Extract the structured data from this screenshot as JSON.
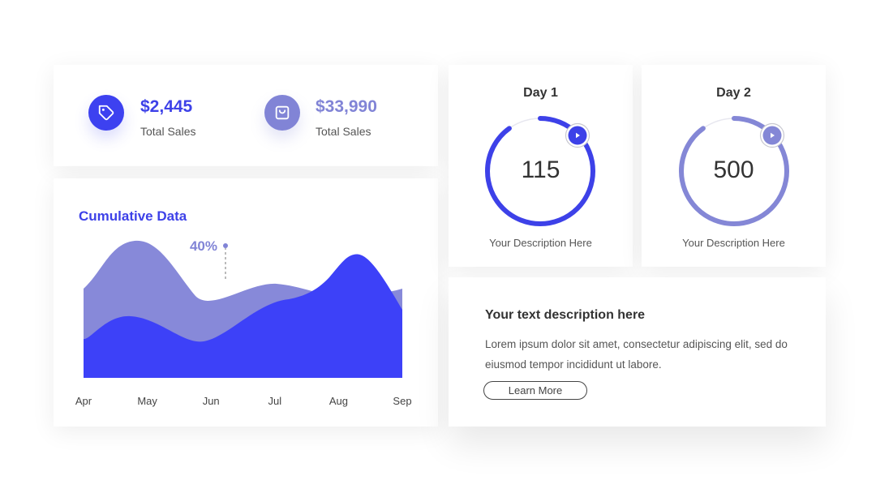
{
  "sales": {
    "items": [
      {
        "value": "$2,445",
        "label": "Total Sales",
        "icon": "tag-icon",
        "color": "#3d41f0"
      },
      {
        "value": "$33,990",
        "label": "Total Sales",
        "icon": "shopping-bag-icon",
        "color": "#8184d6"
      }
    ]
  },
  "chart": {
    "title": "Cumulative Data",
    "annotation": "40%",
    "chart_data": {
      "type": "area",
      "categories": [
        "Apr",
        "May",
        "Jun",
        "Jul",
        "Aug",
        "Sep"
      ],
      "title": "Cumulative Data",
      "xlabel": "",
      "ylabel": "",
      "grid": false,
      "annotation": {
        "label": "40%",
        "category": "Jun"
      },
      "series": [
        {
          "color": "#8789d9"
        },
        {
          "color": "#3d41f8"
        }
      ]
    }
  },
  "day1": {
    "title": "Day 1",
    "number": "115",
    "description": "Your Description Here",
    "progress": 0.9,
    "color": "#3d41e8"
  },
  "day2": {
    "title": "Day 2",
    "number": "500",
    "description": "Your Description Here",
    "progress": 0.9,
    "color": "#8487d6"
  },
  "description": {
    "heading": "Your text description here",
    "body": "Lorem ipsum dolor sit amet, consectetur adipiscing elit, sed do eiusmod tempor incididunt ut labore.",
    "button": "Learn More"
  }
}
